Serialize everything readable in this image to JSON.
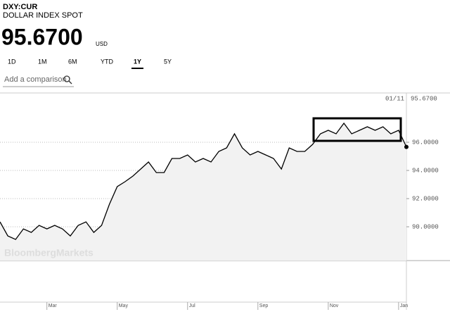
{
  "header": {
    "symbol": "DXY:CUR",
    "name": "DOLLAR INDEX SPOT",
    "price": "95.6700",
    "currency": "USD"
  },
  "tabs": [
    "1D",
    "1M",
    "6M",
    "YTD",
    "1Y",
    "5Y"
  ],
  "selected_tab": 4,
  "compare_placeholder": "Add a comparison",
  "chart_data": {
    "type": "line",
    "last_date": "01/11",
    "watermark": "BloombergMarkets",
    "categories": [
      null,
      null,
      null,
      null,
      null,
      null,
      "Mar",
      null,
      null,
      null,
      null,
      null,
      null,
      null,
      null,
      "May",
      null,
      null,
      null,
      null,
      null,
      null,
      null,
      null,
      "Jul",
      null,
      null,
      null,
      null,
      null,
      null,
      null,
      null,
      "Sep",
      null,
      null,
      null,
      null,
      null,
      null,
      null,
      null,
      "Nov",
      null,
      null,
      null,
      null,
      null,
      null,
      null,
      null,
      "Jan",
      null
    ],
    "series": [
      {
        "color": "#000000",
        "values": [
          90.35,
          89.35,
          89.1,
          89.85,
          89.6,
          90.1,
          89.85,
          90.1,
          89.85,
          89.35,
          90.1,
          90.35,
          89.6,
          90.1,
          91.6,
          92.85,
          93.2,
          93.6,
          94.1,
          94.6,
          93.85,
          93.85,
          94.85,
          94.85,
          95.1,
          94.6,
          94.85,
          94.6,
          95.35,
          95.6,
          96.6,
          95.6,
          95.1,
          95.35,
          95.1,
          94.85,
          94.1,
          95.6,
          95.35,
          95.35,
          95.85,
          96.6,
          96.85,
          96.6,
          97.35,
          96.6,
          96.85,
          97.1,
          96.85,
          97.1,
          96.6,
          96.85,
          95.67
        ]
      }
    ],
    "ylim": [
      87.6,
      99.5
    ],
    "yticks": [
      {
        "value": 90,
        "label": "90.0000"
      },
      {
        "value": 92,
        "label": "92.0000"
      },
      {
        "value": 94,
        "label": "94.0000"
      },
      {
        "value": 96,
        "label": "96.0000"
      }
    ],
    "grid": true,
    "area_color": "#f2f2f2"
  }
}
